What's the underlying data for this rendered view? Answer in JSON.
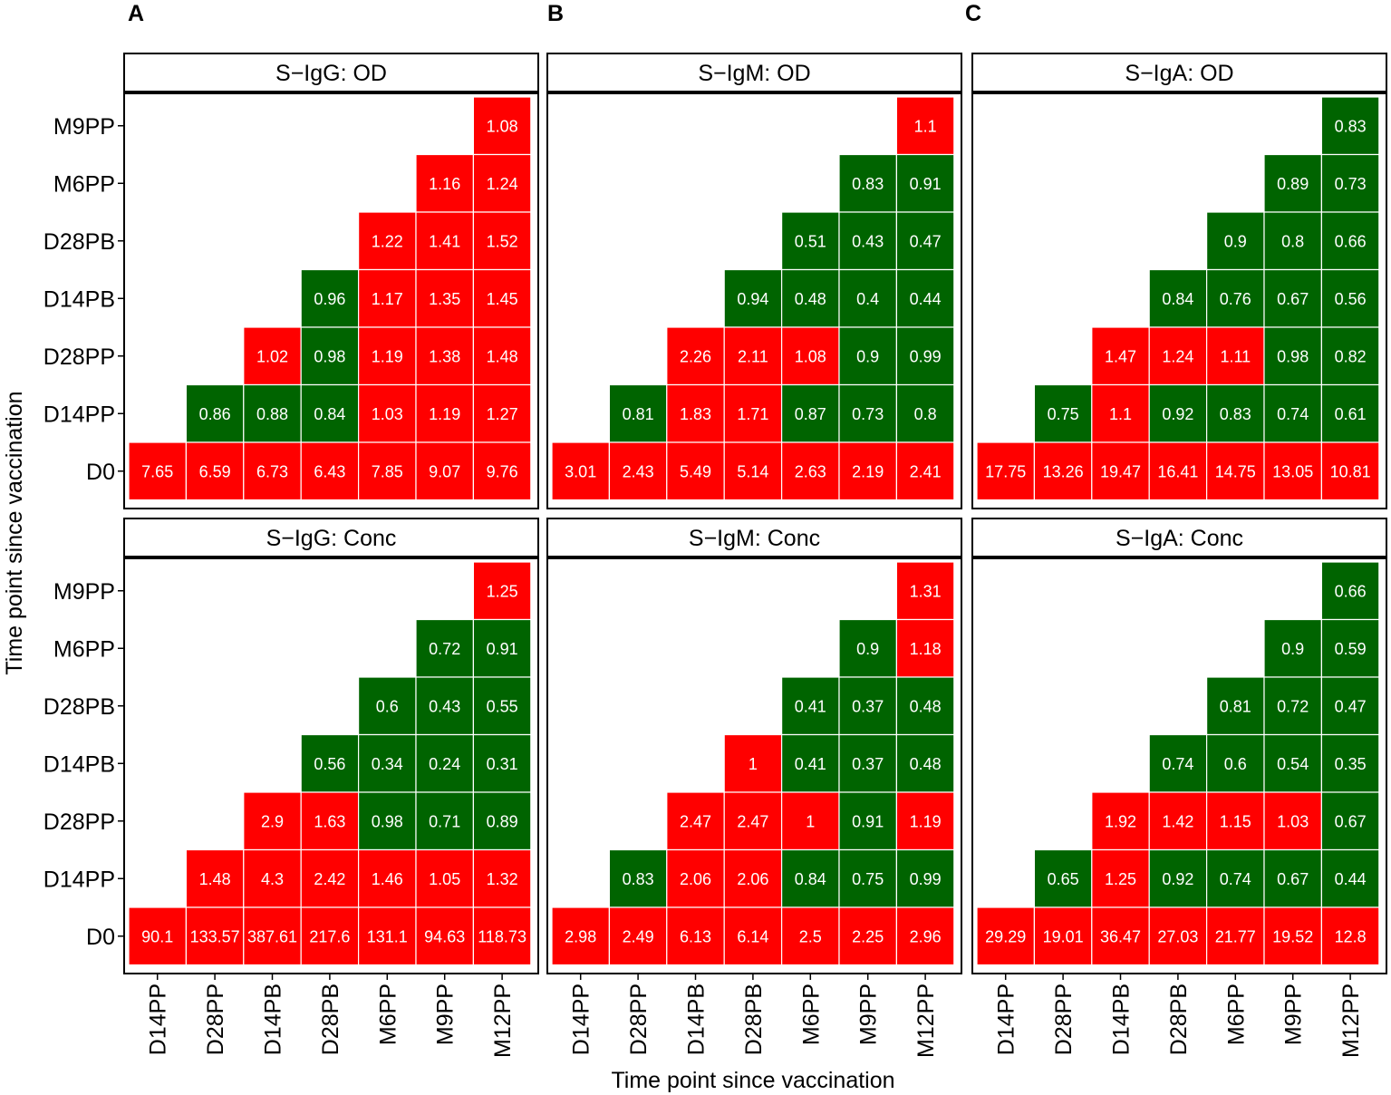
{
  "figure": {
    "panel_letters": [
      "A",
      "B",
      "C"
    ],
    "y_axis_title": "Time point since vaccination",
    "x_axis_title": "Time point since vaccination",
    "colors": {
      "increase": "#ff0000",
      "decrease": "#006400",
      "cell_text": "#ffffff",
      "border": "#000000",
      "grid": "#ffffff"
    }
  },
  "chart_data": {
    "type": "heatmap",
    "x_categories": [
      "D14PP",
      "D28PP",
      "D14PB",
      "D28PB",
      "M6PP",
      "M9PP",
      "M12PP"
    ],
    "y_categories": [
      "M9PP",
      "M6PP",
      "D28PB",
      "D14PB",
      "D28PP",
      "D14PP",
      "D0"
    ],
    "color_rule": "red if value >= 1, green if value < 1",
    "panels": [
      {
        "id": "igg-od",
        "title": "S−IgG: OD",
        "rows": [
          [
            null,
            null,
            null,
            null,
            null,
            null,
            1.08
          ],
          [
            null,
            null,
            null,
            null,
            null,
            1.16,
            1.24
          ],
          [
            null,
            null,
            null,
            null,
            1.22,
            1.41,
            1.52
          ],
          [
            null,
            null,
            null,
            0.96,
            1.17,
            1.35,
            1.45
          ],
          [
            null,
            null,
            1.02,
            0.98,
            1.19,
            1.38,
            1.48
          ],
          [
            null,
            0.86,
            0.88,
            0.84,
            1.03,
            1.19,
            1.27
          ],
          [
            7.65,
            6.59,
            6.73,
            6.43,
            7.85,
            9.07,
            9.76
          ]
        ]
      },
      {
        "id": "igm-od",
        "title": "S−IgM: OD",
        "rows": [
          [
            null,
            null,
            null,
            null,
            null,
            null,
            1.1
          ],
          [
            null,
            null,
            null,
            null,
            null,
            0.83,
            0.91
          ],
          [
            null,
            null,
            null,
            null,
            0.51,
            0.43,
            0.47
          ],
          [
            null,
            null,
            null,
            0.94,
            0.48,
            0.4,
            0.44
          ],
          [
            null,
            null,
            2.26,
            2.11,
            1.08,
            0.9,
            0.99
          ],
          [
            null,
            0.81,
            1.83,
            1.71,
            0.87,
            0.73,
            0.8
          ],
          [
            3.01,
            2.43,
            5.49,
            5.14,
            2.63,
            2.19,
            2.41
          ]
        ]
      },
      {
        "id": "iga-od",
        "title": "S−IgA: OD",
        "rows": [
          [
            null,
            null,
            null,
            null,
            null,
            null,
            0.83
          ],
          [
            null,
            null,
            null,
            null,
            null,
            0.89,
            0.73
          ],
          [
            null,
            null,
            null,
            null,
            0.9,
            0.8,
            0.66
          ],
          [
            null,
            null,
            null,
            0.84,
            0.76,
            0.67,
            0.56
          ],
          [
            null,
            null,
            1.47,
            1.24,
            1.11,
            0.98,
            0.82
          ],
          [
            null,
            0.75,
            1.1,
            0.92,
            0.83,
            0.74,
            0.61
          ],
          [
            17.75,
            13.26,
            19.47,
            16.41,
            14.75,
            13.05,
            10.81
          ]
        ]
      },
      {
        "id": "igg-conc",
        "title": "S−IgG: Conc",
        "rows": [
          [
            null,
            null,
            null,
            null,
            null,
            null,
            1.25
          ],
          [
            null,
            null,
            null,
            null,
            null,
            0.72,
            0.91
          ],
          [
            null,
            null,
            null,
            null,
            0.6,
            0.43,
            0.55
          ],
          [
            null,
            null,
            null,
            0.56,
            0.34,
            0.24,
            0.31
          ],
          [
            null,
            null,
            2.9,
            1.63,
            0.98,
            0.71,
            0.89
          ],
          [
            null,
            1.48,
            4.3,
            2.42,
            1.46,
            1.05,
            1.32
          ],
          [
            90.1,
            133.57,
            387.61,
            217.6,
            131.1,
            94.63,
            118.73
          ]
        ]
      },
      {
        "id": "igm-conc",
        "title": "S−IgM: Conc",
        "rows": [
          [
            null,
            null,
            null,
            null,
            null,
            null,
            1.31
          ],
          [
            null,
            null,
            null,
            null,
            null,
            0.9,
            1.18
          ],
          [
            null,
            null,
            null,
            null,
            0.41,
            0.37,
            0.48
          ],
          [
            null,
            null,
            null,
            1,
            0.41,
            0.37,
            0.48
          ],
          [
            null,
            null,
            2.47,
            2.47,
            1,
            0.91,
            1.19
          ],
          [
            null,
            0.83,
            2.06,
            2.06,
            0.84,
            0.75,
            0.99
          ],
          [
            2.98,
            2.49,
            6.13,
            6.14,
            2.5,
            2.25,
            2.96
          ]
        ]
      },
      {
        "id": "iga-conc",
        "title": "S−IgA: Conc",
        "rows": [
          [
            null,
            null,
            null,
            null,
            null,
            null,
            0.66
          ],
          [
            null,
            null,
            null,
            null,
            null,
            0.9,
            0.59
          ],
          [
            null,
            null,
            null,
            null,
            0.81,
            0.72,
            0.47
          ],
          [
            null,
            null,
            null,
            0.74,
            0.6,
            0.54,
            0.35
          ],
          [
            null,
            null,
            1.92,
            1.42,
            1.15,
            1.03,
            0.67
          ],
          [
            null,
            0.65,
            1.25,
            0.92,
            0.74,
            0.67,
            0.44
          ],
          [
            29.29,
            19.01,
            36.47,
            27.03,
            21.77,
            19.52,
            12.8
          ]
        ]
      }
    ]
  }
}
